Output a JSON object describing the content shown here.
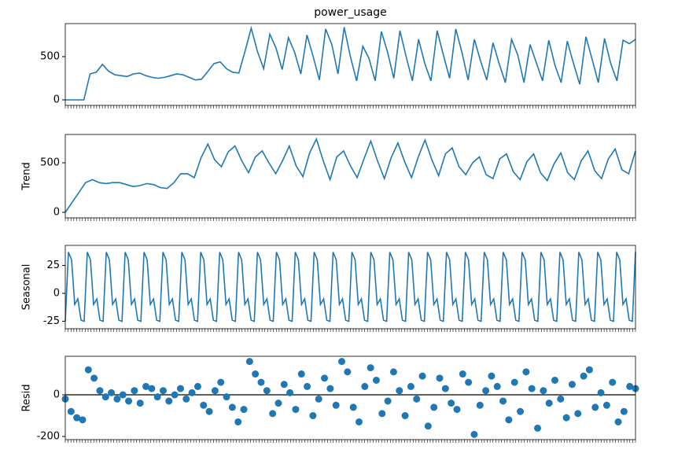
{
  "chart_data": [
    {
      "type": "line",
      "title": "power_usage",
      "color": "#1f77b4",
      "ylim": [
        -64,
        882
      ],
      "yticks": [
        0,
        500
      ],
      "values": [
        0,
        0,
        0,
        0,
        300,
        320,
        410,
        330,
        290,
        280,
        270,
        300,
        310,
        280,
        260,
        250,
        260,
        280,
        300,
        290,
        260,
        230,
        240,
        330,
        420,
        440,
        360,
        320,
        310,
        560,
        830,
        560,
        360,
        760,
        600,
        350,
        720,
        550,
        300,
        750,
        500,
        230,
        820,
        640,
        300,
        840,
        500,
        220,
        620,
        480,
        220,
        790,
        550,
        250,
        800,
        500,
        220,
        700,
        420,
        220,
        800,
        520,
        250,
        820,
        550,
        230,
        700,
        450,
        230,
        660,
        420,
        200,
        700,
        520,
        200,
        640,
        430,
        220,
        690,
        400,
        200,
        680,
        420,
        180,
        730,
        470,
        200,
        710,
        420,
        220,
        690,
        650,
        700
      ]
    },
    {
      "type": "line",
      "ylabel": "Trend",
      "color": "#1f77b4",
      "ylim": [
        -56,
        786
      ],
      "yticks": [
        0,
        500
      ],
      "values": [
        0,
        100,
        200,
        300,
        330,
        300,
        290,
        300,
        300,
        280,
        260,
        270,
        290,
        280,
        250,
        240,
        300,
        390,
        390,
        350,
        550,
        690,
        530,
        460,
        610,
        670,
        520,
        400,
        560,
        620,
        500,
        390,
        520,
        670,
        470,
        360,
        600,
        740,
        520,
        330,
        560,
        620,
        470,
        350,
        540,
        720,
        520,
        340,
        550,
        700,
        510,
        350,
        560,
        730,
        530,
        370,
        590,
        650,
        460,
        380,
        500,
        560,
        380,
        340,
        540,
        590,
        410,
        330,
        510,
        590,
        400,
        320,
        490,
        600,
        400,
        330,
        520,
        620,
        420,
        340,
        540,
        640,
        430,
        390,
        620
      ]
    },
    {
      "type": "line",
      "ylabel": "Seasonal",
      "color": "#1f77b4",
      "ylim": [
        -31.7,
        43
      ],
      "yticks": [
        -25,
        0,
        25
      ],
      "values": [
        -25,
        37,
        30,
        -10,
        -5,
        -24,
        -25,
        37,
        30,
        -10,
        -5,
        -24,
        -25,
        37,
        30,
        -10,
        -5,
        -24,
        -25,
        37,
        30,
        -10,
        -5,
        -24,
        -25,
        37,
        30,
        -10,
        -5,
        -24,
        -25,
        37,
        30,
        -10,
        -5,
        -24,
        -25,
        37,
        30,
        -10,
        -5,
        -24,
        -25,
        37,
        30,
        -10,
        -5,
        -24,
        -25,
        37,
        30,
        -10,
        -5,
        -24,
        -25,
        37,
        30,
        -10,
        -5,
        -24,
        -25,
        37,
        30,
        -10,
        -5,
        -24,
        -25,
        37,
        30,
        -10,
        -5,
        -24,
        -25,
        37,
        30,
        -10,
        -5,
        -24,
        -25,
        37,
        30,
        -10,
        -5,
        -24,
        -25,
        37,
        30,
        -10,
        -5,
        -24,
        -25,
        37,
        30,
        -10,
        -5,
        -24,
        -25,
        37,
        30,
        -10,
        -5,
        -24,
        -25,
        37,
        30,
        -10,
        -5,
        -24,
        -25,
        37,
        30,
        -10,
        -5,
        -24,
        -25,
        37,
        30,
        -10,
        -5,
        -24,
        -25,
        37,
        30,
        -10,
        -5,
        -24,
        -25,
        37,
        30,
        -10,
        -5,
        -24,
        -25,
        37,
        30,
        -10,
        -5,
        -24,
        -25,
        37,
        30,
        -10,
        -5,
        -24,
        -25,
        37,
        30,
        -10,
        -5,
        -24,
        -25,
        37,
        30,
        -10,
        -5,
        -24,
        -25,
        37,
        30,
        -10,
        -5,
        -24,
        -25,
        37,
        30,
        -10,
        -5,
        -24,
        -25,
        37,
        30,
        -10,
        -5,
        -24,
        -25,
        37,
        30,
        -10,
        -5,
        -24,
        -25,
        37
      ]
    },
    {
      "type": "scatter",
      "ylabel": "Resid",
      "color": "#1f77b4",
      "ylim": [
        -215,
        185
      ],
      "yticks": [
        -200,
        0
      ],
      "values": [
        -20,
        -80,
        -110,
        -120,
        120,
        80,
        20,
        -10,
        10,
        -20,
        0,
        -30,
        20,
        -40,
        40,
        30,
        -10,
        20,
        -30,
        0,
        30,
        -20,
        10,
        40,
        -50,
        -80,
        20,
        60,
        -10,
        -60,
        -130,
        -70,
        160,
        100,
        60,
        20,
        -90,
        -40,
        50,
        10,
        -70,
        100,
        40,
        -100,
        -20,
        80,
        30,
        -50,
        160,
        110,
        -60,
        -130,
        40,
        130,
        70,
        -90,
        -30,
        110,
        20,
        -100,
        40,
        -20,
        90,
        -150,
        -60,
        80,
        30,
        -40,
        -70,
        100,
        60,
        -190,
        -50,
        20,
        90,
        40,
        -30,
        -120,
        60,
        -80,
        110,
        30,
        -160,
        20,
        -40,
        70,
        -20,
        -110,
        50,
        -90,
        90,
        120,
        -60,
        10,
        -50,
        60,
        -130,
        -80,
        40,
        30
      ]
    }
  ]
}
